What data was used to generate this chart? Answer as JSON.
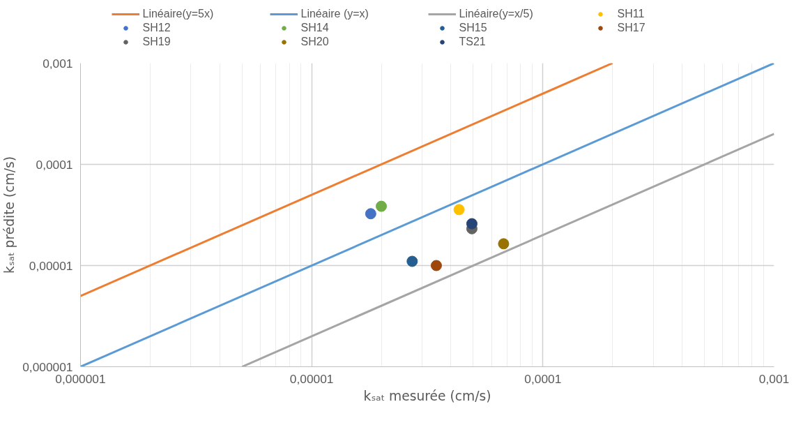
{
  "chart_data": {
    "type": "scatter",
    "xlabel": "kₛₐₜ mesurée (cm/s)",
    "ylabel": "kₛₐₜ prédite (cm/s)",
    "log": "xy",
    "grid": true,
    "legend": "top",
    "marker": "circle",
    "xlim": [
      1e-06,
      0.001
    ],
    "ylim": [
      1e-06,
      0.001
    ],
    "xticks": [
      {
        "value": 1e-06,
        "label": "0,000001"
      },
      {
        "value": 1e-05,
        "label": "0,00001"
      },
      {
        "value": 0.0001,
        "label": "0,0001"
      },
      {
        "value": 0.001,
        "label": "0,001"
      }
    ],
    "yticks": [
      {
        "value": 1e-06,
        "label": "0,000001"
      },
      {
        "value": 1e-05,
        "label": "0,00001"
      },
      {
        "value": 0.0001,
        "label": "0,0001"
      },
      {
        "value": 0.001,
        "label": "0,001"
      }
    ],
    "series": [
      {
        "name": "Linéaire(y=5x)",
        "type": "line",
        "marker": "none",
        "color": "#ed7d31",
        "x": [
          1e-06,
          0.0002
        ],
        "values": [
          5e-06,
          0.001
        ]
      },
      {
        "name": "Linéaire (y=x)",
        "type": "line",
        "marker": "none",
        "color": "#5b9bd5",
        "x": [
          1e-06,
          0.001
        ],
        "values": [
          1e-06,
          0.001
        ]
      },
      {
        "name": "Linéaire(y=x/5)",
        "type": "line",
        "marker": "none",
        "color": "#a5a5a5",
        "x": [
          5e-06,
          0.001
        ],
        "values": [
          1e-06,
          0.0002
        ]
      },
      {
        "name": "SH11",
        "color": "#ffc000",
        "x": [
          4.34e-05
        ],
        "values": [
          3.57e-05
        ]
      },
      {
        "name": "SH12",
        "color": "#4472c4",
        "x": [
          1.8e-05
        ],
        "values": [
          3.25e-05
        ]
      },
      {
        "name": "SH14",
        "color": "#70ad47",
        "x": [
          2e-05
        ],
        "values": [
          3.85e-05
        ]
      },
      {
        "name": "SH15",
        "color": "#255e91",
        "x": [
          2.72e-05
        ],
        "values": [
          1.1e-05
        ]
      },
      {
        "name": "SH17",
        "color": "#9e480e",
        "x": [
          3.46e-05
        ],
        "values": [
          1e-05
        ]
      },
      {
        "name": "SH19",
        "color": "#636363",
        "x": [
          4.93e-05
        ],
        "values": [
          2.31e-05
        ]
      },
      {
        "name": "SH20",
        "color": "#997300",
        "x": [
          6.76e-05
        ],
        "values": [
          1.64e-05
        ]
      },
      {
        "name": "TS21",
        "color": "#264478",
        "x": [
          4.93e-05
        ],
        "values": [
          2.59e-05
        ]
      }
    ]
  }
}
